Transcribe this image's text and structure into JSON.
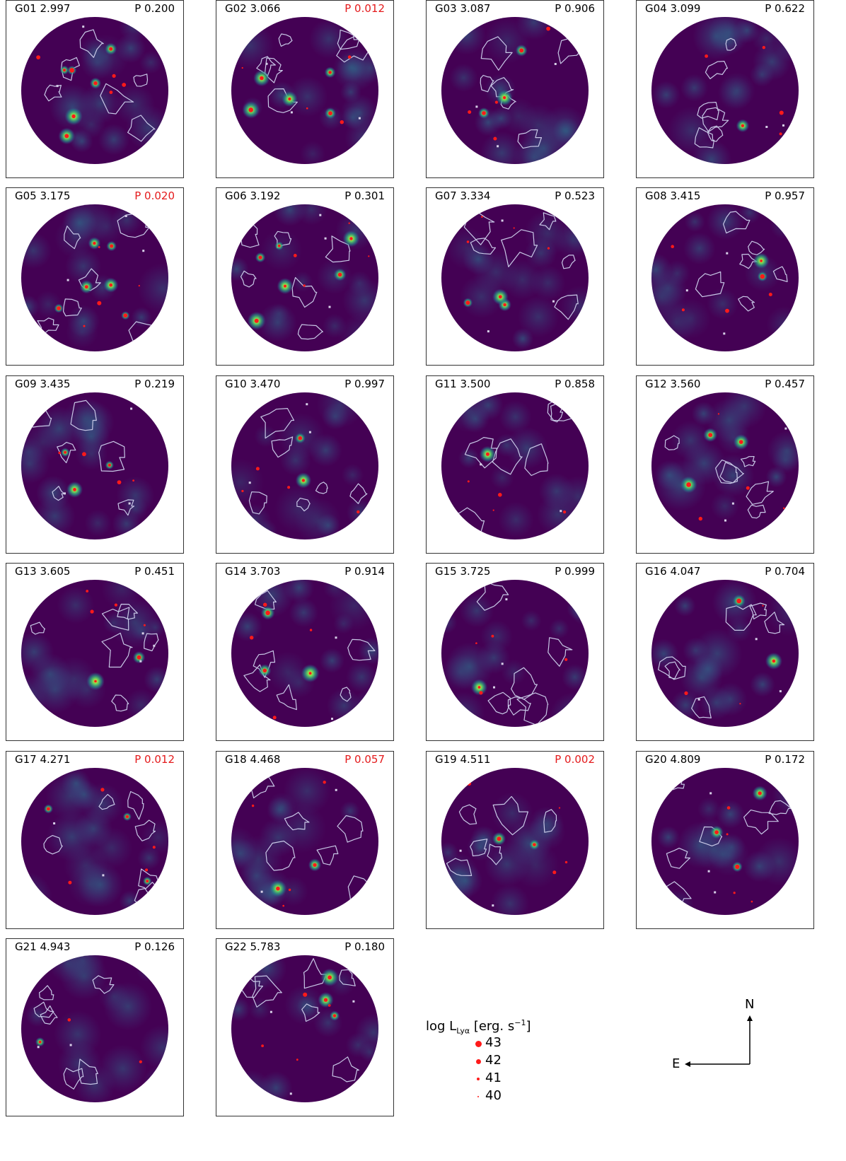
{
  "chart_data": {
    "type": "map-grid",
    "panels": [
      {
        "id": "G01",
        "z": "2.997",
        "p": "P 0.200",
        "sig": false,
        "seed": 11,
        "blobs": 6
      },
      {
        "id": "G02",
        "z": "3.066",
        "p": "P 0.012",
        "sig": true,
        "seed": 23,
        "blobs": 5
      },
      {
        "id": "G03",
        "z": "3.087",
        "p": "P 0.906",
        "sig": false,
        "seed": 37,
        "blobs": 3
      },
      {
        "id": "G04",
        "z": "3.099",
        "p": "P 0.622",
        "sig": false,
        "seed": 41,
        "blobs": 1
      },
      {
        "id": "G05",
        "z": "3.175",
        "p": "P 0.020",
        "sig": true,
        "seed": 53,
        "blobs": 6
      },
      {
        "id": "G06",
        "z": "3.192",
        "p": "P 0.301",
        "sig": false,
        "seed": 67,
        "blobs": 6
      },
      {
        "id": "G07",
        "z": "3.334",
        "p": "P 0.523",
        "sig": false,
        "seed": 71,
        "blobs": 3
      },
      {
        "id": "G08",
        "z": "3.415",
        "p": "P 0.957",
        "sig": false,
        "seed": 83,
        "blobs": 2
      },
      {
        "id": "G09",
        "z": "3.435",
        "p": "P 0.219",
        "sig": false,
        "seed": 97,
        "blobs": 3
      },
      {
        "id": "G10",
        "z": "3.470",
        "p": "P 0.997",
        "sig": false,
        "seed": 101,
        "blobs": 2
      },
      {
        "id": "G11",
        "z": "3.500",
        "p": "P 0.858",
        "sig": false,
        "seed": 113,
        "blobs": 1
      },
      {
        "id": "G12",
        "z": "3.560",
        "p": "P 0.457",
        "sig": false,
        "seed": 127,
        "blobs": 3
      },
      {
        "id": "G13",
        "z": "3.605",
        "p": "P 0.451",
        "sig": false,
        "seed": 131,
        "blobs": 2
      },
      {
        "id": "G14",
        "z": "3.703",
        "p": "P 0.914",
        "sig": false,
        "seed": 149,
        "blobs": 3
      },
      {
        "id": "G15",
        "z": "3.725",
        "p": "P 0.999",
        "sig": false,
        "seed": 151,
        "blobs": 1
      },
      {
        "id": "G16",
        "z": "4.047",
        "p": "P 0.704",
        "sig": false,
        "seed": 163,
        "blobs": 2
      },
      {
        "id": "G17",
        "z": "4.271",
        "p": "P 0.012",
        "sig": true,
        "seed": 173,
        "blobs": 3
      },
      {
        "id": "G18",
        "z": "4.468",
        "p": "P 0.057",
        "sig": true,
        "seed": 181,
        "blobs": 2
      },
      {
        "id": "G19",
        "z": "4.511",
        "p": "P 0.002",
        "sig": true,
        "seed": 193,
        "blobs": 2
      },
      {
        "id": "G20",
        "z": "4.809",
        "p": "P 0.172",
        "sig": false,
        "seed": 197,
        "blobs": 3
      },
      {
        "id": "G21",
        "z": "4.943",
        "p": "P 0.126",
        "sig": false,
        "seed": 211,
        "blobs": 1
      },
      {
        "id": "G22",
        "z": "5.783",
        "p": "P 0.180",
        "sig": false,
        "seed": 223,
        "blobs": 3
      }
    ],
    "legend": {
      "title": "log L_Lyα [erg. s⁻¹]",
      "entries": [
        "43",
        "42",
        "41",
        "40"
      ]
    },
    "compass": {
      "north": "N",
      "east": "E"
    }
  },
  "colors": {
    "map_bg": "#440154",
    "contour": "#c8c8e6",
    "lae": "#ff1a1a",
    "significant": "#e41a1c",
    "white_marker": "#d8d0e8"
  }
}
